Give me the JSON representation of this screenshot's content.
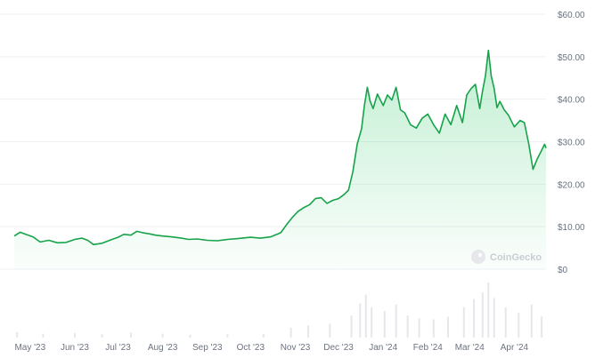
{
  "chart_data": {
    "type": "area",
    "title": "",
    "xlabel": "",
    "ylabel": "",
    "ylim": [
      0,
      60
    ],
    "y_ticks": [
      "$60.00",
      "$50.00",
      "$40.00",
      "$30.00",
      "$20.00",
      "$10.00",
      "$0"
    ],
    "y_tick_values": [
      60,
      50,
      40,
      30,
      20,
      10,
      0
    ],
    "x_ticks": [
      "May '23",
      "Jun '23",
      "Jul '23",
      "Aug '23",
      "Sep '23",
      "Oct '23",
      "Nov '23",
      "Dec '23",
      "Jan '24",
      "Feb '24",
      "Mar '24",
      "Apr '24"
    ],
    "x_tick_dates": [
      "2023-05-01",
      "2023-06-01",
      "2023-07-01",
      "2023-08-01",
      "2023-09-01",
      "2023-10-01",
      "2023-11-01",
      "2023-12-01",
      "2024-01-01",
      "2024-02-01",
      "2024-03-01",
      "2024-04-01"
    ],
    "x_range": [
      "2023-04-20",
      "2024-04-23"
    ],
    "grid": true,
    "legend": "none",
    "series": [
      {
        "color": "#16a34a",
        "points": [
          [
            "2023-04-20",
            7.8
          ],
          [
            "2023-04-24",
            8.7
          ],
          [
            "2023-04-28",
            8.2
          ],
          [
            "2023-05-03",
            7.6
          ],
          [
            "2023-05-08",
            6.4
          ],
          [
            "2023-05-14",
            6.8
          ],
          [
            "2023-05-20",
            6.2
          ],
          [
            "2023-05-26",
            6.3
          ],
          [
            "2023-06-01",
            7.0
          ],
          [
            "2023-06-06",
            7.3
          ],
          [
            "2023-06-10",
            6.8
          ],
          [
            "2023-06-14",
            5.8
          ],
          [
            "2023-06-20",
            6.1
          ],
          [
            "2023-06-26",
            6.9
          ],
          [
            "2023-07-01",
            7.5
          ],
          [
            "2023-07-05",
            8.2
          ],
          [
            "2023-07-10",
            8.0
          ],
          [
            "2023-07-14",
            8.9
          ],
          [
            "2023-07-18",
            8.6
          ],
          [
            "2023-07-23",
            8.3
          ],
          [
            "2023-07-27",
            8.0
          ],
          [
            "2023-08-01",
            7.8
          ],
          [
            "2023-08-07",
            7.6
          ],
          [
            "2023-08-14",
            7.3
          ],
          [
            "2023-08-19",
            7.0
          ],
          [
            "2023-08-25",
            7.1
          ],
          [
            "2023-09-01",
            6.8
          ],
          [
            "2023-09-08",
            6.7
          ],
          [
            "2023-09-15",
            7.0
          ],
          [
            "2023-09-22",
            7.2
          ],
          [
            "2023-10-01",
            7.5
          ],
          [
            "2023-10-08",
            7.3
          ],
          [
            "2023-10-15",
            7.6
          ],
          [
            "2023-10-22",
            8.6
          ],
          [
            "2023-10-26",
            10.5
          ],
          [
            "2023-10-30",
            12.2
          ],
          [
            "2023-11-03",
            13.6
          ],
          [
            "2023-11-07",
            14.5
          ],
          [
            "2023-11-11",
            15.2
          ],
          [
            "2023-11-15",
            16.6
          ],
          [
            "2023-11-19",
            16.8
          ],
          [
            "2023-11-23",
            15.5
          ],
          [
            "2023-11-27",
            16.2
          ],
          [
            "2023-12-01",
            16.6
          ],
          [
            "2023-12-05",
            17.6
          ],
          [
            "2023-12-08",
            18.6
          ],
          [
            "2023-12-11",
            23.0
          ],
          [
            "2023-12-14",
            29.5
          ],
          [
            "2023-12-17",
            33.0
          ],
          [
            "2023-12-19",
            38.5
          ],
          [
            "2023-12-21",
            42.8
          ],
          [
            "2023-12-23",
            39.5
          ],
          [
            "2023-12-25",
            37.8
          ],
          [
            "2023-12-28",
            41.2
          ],
          [
            "2024-01-01",
            38.5
          ],
          [
            "2024-01-04",
            41.0
          ],
          [
            "2024-01-07",
            39.8
          ],
          [
            "2024-01-10",
            42.8
          ],
          [
            "2024-01-13",
            37.5
          ],
          [
            "2024-01-16",
            36.8
          ],
          [
            "2024-01-20",
            34.0
          ],
          [
            "2024-01-24",
            33.2
          ],
          [
            "2024-01-28",
            35.5
          ],
          [
            "2024-02-01",
            36.5
          ],
          [
            "2024-02-05",
            34.0
          ],
          [
            "2024-02-09",
            32.0
          ],
          [
            "2024-02-13",
            36.5
          ],
          [
            "2024-02-17",
            34.0
          ],
          [
            "2024-02-21",
            38.5
          ],
          [
            "2024-02-25",
            34.5
          ],
          [
            "2024-02-28",
            41.0
          ],
          [
            "2024-03-02",
            42.5
          ],
          [
            "2024-03-05",
            43.5
          ],
          [
            "2024-03-08",
            37.8
          ],
          [
            "2024-03-10",
            42.0
          ],
          [
            "2024-03-12",
            45.5
          ],
          [
            "2024-03-14",
            51.5
          ],
          [
            "2024-03-16",
            45.5
          ],
          [
            "2024-03-18",
            42.5
          ],
          [
            "2024-03-20",
            38.0
          ],
          [
            "2024-03-22",
            39.5
          ],
          [
            "2024-03-25",
            37.5
          ],
          [
            "2024-03-28",
            36.2
          ],
          [
            "2024-04-01",
            33.5
          ],
          [
            "2024-04-05",
            35.0
          ],
          [
            "2024-04-08",
            34.5
          ],
          [
            "2024-04-11",
            29.5
          ],
          [
            "2024-04-14",
            23.5
          ],
          [
            "2024-04-17",
            26.0
          ],
          [
            "2024-04-20",
            28.0
          ],
          [
            "2024-04-22",
            29.4
          ],
          [
            "2024-04-23",
            28.5
          ]
        ]
      }
    ],
    "volume_bars": [
      [
        "2023-04-22",
        0.1
      ],
      [
        "2023-05-10",
        0.07
      ],
      [
        "2023-06-01",
        0.08
      ],
      [
        "2023-06-20",
        0.06
      ],
      [
        "2023-07-10",
        0.09
      ],
      [
        "2023-08-01",
        0.07
      ],
      [
        "2023-08-20",
        0.05
      ],
      [
        "2023-09-15",
        0.06
      ],
      [
        "2023-10-10",
        0.07
      ],
      [
        "2023-10-29",
        0.18
      ],
      [
        "2023-11-10",
        0.22
      ],
      [
        "2023-11-25",
        0.25
      ],
      [
        "2023-12-10",
        0.4
      ],
      [
        "2023-12-16",
        0.62
      ],
      [
        "2023-12-20",
        0.78
      ],
      [
        "2023-12-24",
        0.55
      ],
      [
        "2024-01-02",
        0.48
      ],
      [
        "2024-01-10",
        0.6
      ],
      [
        "2024-01-18",
        0.4
      ],
      [
        "2024-01-26",
        0.35
      ],
      [
        "2024-02-05",
        0.33
      ],
      [
        "2024-02-15",
        0.38
      ],
      [
        "2024-02-26",
        0.55
      ],
      [
        "2024-03-04",
        0.7
      ],
      [
        "2024-03-10",
        0.82
      ],
      [
        "2024-03-14",
        1.0
      ],
      [
        "2024-03-18",
        0.72
      ],
      [
        "2024-03-26",
        0.55
      ],
      [
        "2024-04-04",
        0.45
      ],
      [
        "2024-04-13",
        0.6
      ],
      [
        "2024-04-20",
        0.38
      ]
    ]
  },
  "watermark": "CoinGecko"
}
